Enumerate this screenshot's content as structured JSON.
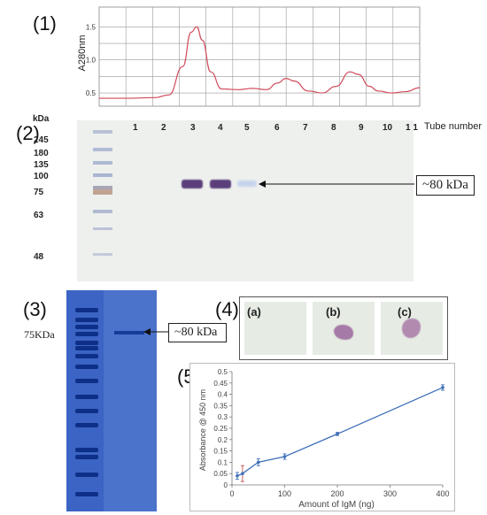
{
  "panels": {
    "p1": "(1)",
    "p2": "(2)",
    "p3": "(3)",
    "p4": "(4)",
    "p5": "(5)"
  },
  "colors": {
    "chromatogram_line": "#d04a5a",
    "gel_background": "#eef0ee",
    "band": "#5a3f7a",
    "coomassie_bg": "#3b64c4",
    "series_line": "#3d6fb8",
    "error_bar": "#c0504d"
  },
  "chart_data": [
    {
      "type": "line",
      "title": "",
      "xlabel": "",
      "ylabel": "A280nm",
      "ylim": [
        0.3,
        1.8
      ],
      "yticks": [
        "0.5",
        "1.0",
        "1.5"
      ],
      "grid": true,
      "x": [
        0,
        1,
        2,
        2.5,
        3.0,
        3.3,
        3.5,
        3.7,
        4.0,
        4.4,
        5.0,
        5.5,
        6.0,
        6.4,
        6.7,
        7.0,
        7.5,
        8.0,
        8.5,
        9.0,
        9.3,
        9.7,
        10.0,
        10.5,
        11.0,
        11.5
      ],
      "y": [
        0.42,
        0.42,
        0.43,
        0.47,
        0.9,
        1.42,
        1.5,
        1.3,
        0.82,
        0.56,
        0.55,
        0.57,
        0.55,
        0.65,
        0.72,
        0.68,
        0.53,
        0.5,
        0.6,
        0.82,
        0.78,
        0.6,
        0.53,
        0.5,
        0.52,
        0.58
      ]
    },
    {
      "type": "line",
      "title": "",
      "xlabel": "Amount of IgM (ng)",
      "ylabel": "Absorbance @ 450 nm",
      "xlim": [
        0,
        400
      ],
      "ylim": [
        0,
        0.5
      ],
      "xticks": [
        "0",
        "100",
        "200",
        "300",
        "400"
      ],
      "yticks": [
        "0",
        "0.05",
        "0.1",
        "0.15",
        "0.2",
        "0.25",
        "0.3",
        "0.35",
        "0.4",
        "0.45",
        "0.5"
      ],
      "grid": false,
      "series": [
        {
          "x": [
            10,
            20,
            50,
            100,
            200,
            400
          ],
          "y": [
            0.04,
            0.05,
            0.1,
            0.125,
            0.225,
            0.43
          ],
          "err": [
            0.015,
            0.035,
            0.015,
            0.012,
            0.007,
            0.012
          ]
        }
      ]
    }
  ],
  "gel": {
    "kda_label": "kDa",
    "tube_caption": "Tube number",
    "tubes": [
      "1",
      "2",
      "3",
      "4",
      "5",
      "6",
      "7",
      "8",
      "9",
      "10",
      "1 1"
    ],
    "markers": [
      "245",
      "180",
      "135",
      "100",
      "75",
      "63",
      "48"
    ],
    "band_note": "~80 kDa"
  },
  "sds": {
    "marker_label": "75KDa",
    "band_note": "~80 kDa"
  },
  "blots": {
    "a": "(a)",
    "b": "(b)",
    "c": "(c)"
  }
}
